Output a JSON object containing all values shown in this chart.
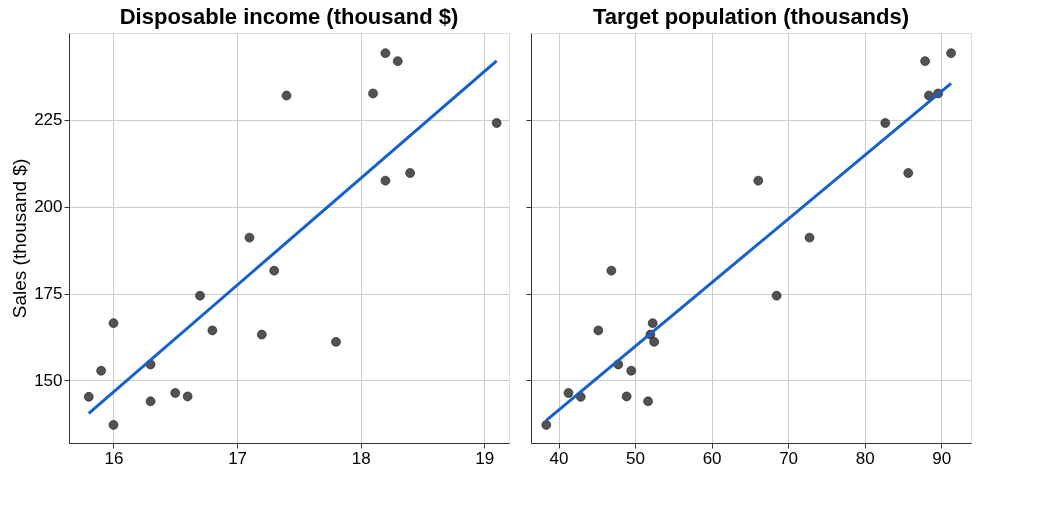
{
  "chart_data": [
    {
      "type": "scatter",
      "title": "Disposable income (thousand $)",
      "ylabel": "Sales (thousand $)",
      "xlim": [
        15.64,
        19.2
      ],
      "xticks": [
        16,
        17,
        18,
        19
      ],
      "ylim": [
        132,
        250
      ],
      "yticks": [
        150,
        175,
        200,
        225
      ],
      "grid": true,
      "series": [
        {
          "marker": "circle",
          "color": "#404040",
          "x": [
            15.8,
            15.9,
            16.0,
            16.0,
            16.3,
            16.3,
            16.5,
            16.6,
            16.7,
            16.8,
            17.1,
            17.2,
            17.3,
            17.4,
            17.8,
            18.1,
            18.2,
            18.2,
            18.3,
            18.4,
            19.1
          ],
          "values": [
            145.3,
            152.8,
            166.5,
            137.2,
            154.6,
            144.0,
            146.4,
            145.4,
            174.4,
            164.4,
            191.1,
            163.2,
            181.6,
            232.0,
            161.1,
            232.6,
            244.2,
            207.5,
            241.9,
            209.7,
            224.1
          ]
        },
        {
          "type": "line",
          "color": "#1560cc",
          "x": [
            15.8,
            19.1
          ],
          "values": [
            140.5,
            242.0
          ]
        }
      ]
    },
    {
      "type": "scatter",
      "title": "Target population (thousands)",
      "xlim": [
        36.4,
        93.9
      ],
      "xticks": [
        40,
        50,
        60,
        70,
        80,
        90
      ],
      "ylim": [
        132,
        250
      ],
      "yticks": [
        150,
        175,
        200,
        225
      ],
      "grid": true,
      "tick_labels": "x",
      "series": [
        {
          "marker": "circle",
          "color": "#404040",
          "x": [
            68.5,
            45.2,
            91.3,
            47.8,
            46.9,
            66.1,
            49.5,
            52.0,
            48.9,
            38.4,
            87.9,
            72.8,
            88.4,
            42.9,
            52.5,
            85.7,
            41.3,
            51.7,
            89.6,
            82.7,
            52.3
          ],
          "values": [
            174.4,
            164.4,
            244.2,
            154.6,
            181.6,
            207.5,
            152.8,
            163.2,
            145.4,
            137.2,
            241.9,
            191.1,
            232.0,
            145.3,
            161.1,
            209.7,
            146.4,
            144.0,
            232.6,
            224.1,
            166.5
          ]
        },
        {
          "type": "line",
          "color": "#1560cc",
          "x": [
            38.4,
            91.3
          ],
          "values": [
            138.5,
            235.5
          ]
        }
      ]
    }
  ]
}
